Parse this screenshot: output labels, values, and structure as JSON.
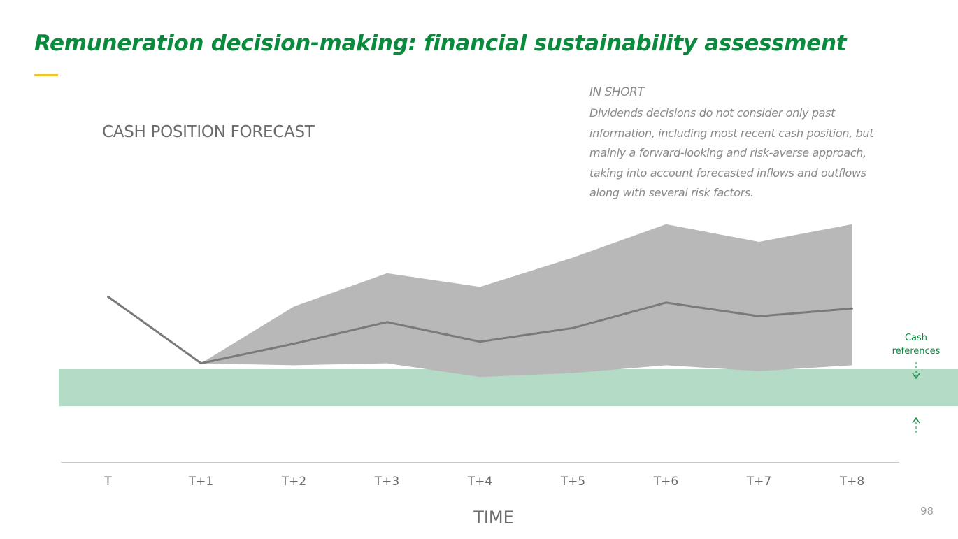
{
  "page": {
    "title": "Remuneration decision-making: financial sustainability assessment",
    "page_number": "98"
  },
  "colors": {
    "title": "#0a8a3c",
    "accent": "#f2c230",
    "band": "#b3dbc6",
    "range": "#b8b8b8",
    "line": "#7a7a7a",
    "axis": "#c8c8c8",
    "tick_text": "#6b6b6b",
    "reference": "#0a8a3c"
  },
  "in_short": {
    "heading": "IN SHORT",
    "body": "Dividends decisions do not consider only past information, including most recent cash position, but mainly a forward-looking and risk-averse approach, taking into account forecasted inflows and outflows along with several risk factors."
  },
  "chart_data": {
    "type": "line",
    "title": "CASH POSITION FORECAST",
    "xlabel": "TIME",
    "ylabel": "",
    "categories": [
      "T",
      "T+1",
      "T+2",
      "T+3",
      "T+4",
      "T+5",
      "T+6",
      "T+7",
      "T+8"
    ],
    "ylim": [
      0,
      100
    ],
    "series": [
      {
        "name": "Cash position forecast",
        "values": [
          62,
          28,
          38,
          49,
          39,
          46,
          59,
          52,
          56
        ]
      }
    ],
    "range": {
      "name": "Forecast range",
      "start_index": 1,
      "upper": [
        28,
        57,
        74,
        67,
        82,
        99,
        90,
        99
      ],
      "lower": [
        28,
        27,
        28,
        21,
        23,
        27,
        24,
        27
      ]
    },
    "reference_band": {
      "label": "Cash references",
      "low": 6,
      "high": 25
    }
  }
}
